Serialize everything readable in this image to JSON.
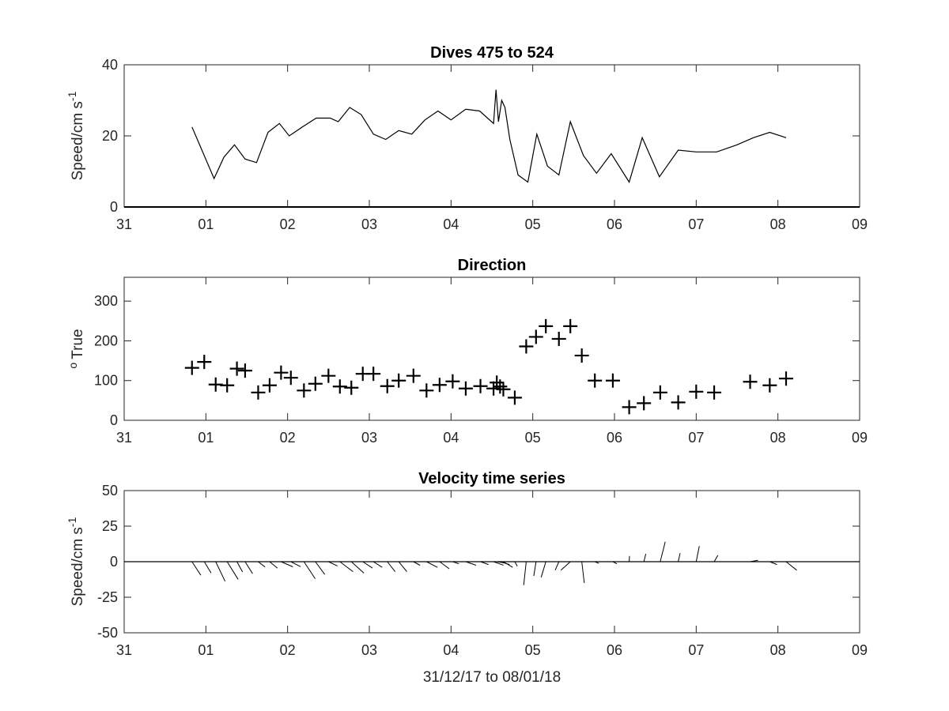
{
  "chart_data": [
    {
      "type": "line",
      "title": "Dives 475 to 524",
      "xlabel": "",
      "ylabel": "Speed/cm s",
      "ylabel_superscript": "-1",
      "xlim": [
        0,
        9
      ],
      "ylim": [
        0,
        40
      ],
      "xtick_values": [
        0,
        1,
        2,
        3,
        4,
        5,
        6,
        7,
        8,
        9
      ],
      "xtick_labels": [
        "31",
        "01",
        "02",
        "03",
        "04",
        "05",
        "06",
        "07",
        "08",
        "09"
      ],
      "ytick_values": [
        0,
        20,
        40
      ],
      "ytick_labels": [
        "0",
        "20",
        "40"
      ],
      "grid": false,
      "x": [
        0.83,
        1.1,
        1.22,
        1.35,
        1.48,
        1.62,
        1.76,
        1.9,
        2.02,
        2.18,
        2.35,
        2.52,
        2.62,
        2.76,
        2.9,
        3.05,
        3.2,
        3.36,
        3.52,
        3.68,
        3.84,
        4.0,
        4.18,
        4.35,
        4.52,
        4.55,
        4.58,
        4.62,
        4.66,
        4.72,
        4.82,
        4.94,
        5.05,
        5.18,
        5.32,
        5.46,
        5.62,
        5.78,
        5.96,
        6.18,
        6.34,
        6.55,
        6.78,
        7.0,
        7.25,
        7.5,
        7.7,
        7.9,
        8.1
      ],
      "y": [
        22.5,
        8,
        14,
        17.5,
        13.5,
        12.5,
        21,
        23.5,
        20,
        22.5,
        25,
        25,
        24,
        28,
        26,
        20.5,
        19,
        21.5,
        20.5,
        24.5,
        27,
        24.5,
        27.5,
        27,
        23.5,
        33,
        24,
        30,
        28,
        19,
        9,
        7,
        20.5,
        11.5,
        9,
        24,
        14.5,
        9.5,
        15,
        7,
        19.5,
        8.5,
        16,
        15.5,
        15.5,
        17.5,
        19.5,
        21,
        19.5
      ]
    },
    {
      "type": "scatter",
      "title": "Direction",
      "xlabel": "",
      "ylabel": "True",
      "ylabel_superscript": "o",
      "marker": "plus",
      "xlim": [
        0,
        9
      ],
      "ylim": [
        0,
        360
      ],
      "xtick_values": [
        0,
        1,
        2,
        3,
        4,
        5,
        6,
        7,
        8,
        9
      ],
      "xtick_labels": [
        "31",
        "01",
        "02",
        "03",
        "04",
        "05",
        "06",
        "07",
        "08",
        "09"
      ],
      "ytick_values": [
        0,
        100,
        200,
        300
      ],
      "ytick_labels": [
        "0",
        "100",
        "200",
        "300"
      ],
      "grid": false,
      "x": [
        0.83,
        0.98,
        1.12,
        1.26,
        1.38,
        1.48,
        1.64,
        1.78,
        1.92,
        2.04,
        2.2,
        2.34,
        2.5,
        2.64,
        2.78,
        2.92,
        3.05,
        3.22,
        3.36,
        3.54,
        3.7,
        3.86,
        4.02,
        4.18,
        4.36,
        4.52,
        4.56,
        4.6,
        4.64,
        4.78,
        4.92,
        5.04,
        5.16,
        5.32,
        5.46,
        5.6,
        5.76,
        5.98,
        6.18,
        6.36,
        6.56,
        6.78,
        7.0,
        7.22,
        7.66,
        7.9,
        8.1
      ],
      "y": [
        132,
        147,
        90,
        88,
        130,
        125,
        70,
        88,
        120,
        107,
        75,
        92,
        112,
        85,
        82,
        117,
        117,
        86,
        100,
        112,
        75,
        89,
        98,
        80,
        86,
        80,
        95,
        85,
        78,
        57,
        186,
        210,
        237,
        205,
        237,
        163,
        100,
        100,
        33,
        43,
        70,
        45,
        72,
        70,
        97,
        88,
        105
      ]
    },
    {
      "type": "line",
      "subtype": "quiver",
      "title": "Velocity time series",
      "xlabel": "31/12/17 to 08/01/18",
      "ylabel": "Speed/cm s",
      "ylabel_superscript": "-1",
      "xlim": [
        0,
        9
      ],
      "ylim": [
        -50,
        50
      ],
      "xtick_values": [
        0,
        1,
        2,
        3,
        4,
        5,
        6,
        7,
        8,
        9
      ],
      "xtick_labels": [
        "31",
        "01",
        "02",
        "03",
        "04",
        "05",
        "06",
        "07",
        "08",
        "09"
      ],
      "ytick_values": [
        -50,
        -25,
        0,
        25,
        50
      ],
      "ytick_labels": [
        "-50",
        "-25",
        "0",
        "25",
        "50"
      ],
      "grid": false,
      "vectors": [
        [
          0.83,
          2.8,
          -9.5
        ],
        [
          0.98,
          2.2,
          -8.0
        ],
        [
          1.12,
          3.0,
          -13.8
        ],
        [
          1.26,
          3.5,
          -12.4
        ],
        [
          1.38,
          1.8,
          -7.2
        ],
        [
          1.48,
          2.4,
          -8.4
        ],
        [
          1.64,
          2.2,
          -3.7
        ],
        [
          1.78,
          2.5,
          -4.5
        ],
        [
          1.92,
          3.8,
          -3.6
        ],
        [
          2.04,
          3.1,
          -3.5
        ],
        [
          2.2,
          3.6,
          -12.0
        ],
        [
          2.34,
          3.0,
          -9.0
        ],
        [
          2.5,
          2.9,
          -3.0
        ],
        [
          2.64,
          4.2,
          -7.0
        ],
        [
          2.78,
          4.0,
          -8.0
        ],
        [
          2.92,
          3.1,
          -4.5
        ],
        [
          3.05,
          2.8,
          -4.0
        ],
        [
          3.22,
          2.5,
          -7.0
        ],
        [
          3.36,
          2.6,
          -7.0
        ],
        [
          3.54,
          2.1,
          -2.5
        ],
        [
          3.7,
          3.5,
          -4.0
        ],
        [
          3.86,
          3.1,
          -5.0
        ],
        [
          4.02,
          2.0,
          -1.5
        ],
        [
          4.18,
          3.3,
          -2.5
        ],
        [
          4.36,
          2.6,
          -2.0
        ],
        [
          4.52,
          3.2,
          -2.5
        ],
        [
          4.56,
          2.8,
          -1.0
        ],
        [
          4.6,
          3.0,
          -2.0
        ],
        [
          4.64,
          3.0,
          -4.0
        ],
        [
          4.78,
          0.8,
          -3.2
        ],
        [
          4.92,
          -0.8,
          -16.5
        ],
        [
          5.04,
          -0.7,
          -10.0
        ],
        [
          5.16,
          -1.5,
          -11.0
        ],
        [
          5.32,
          -1.2,
          -6.0
        ],
        [
          5.46,
          -3.0,
          -6.0
        ],
        [
          5.6,
          0.8,
          -15.0
        ],
        [
          5.76,
          1.3,
          -1.2
        ],
        [
          5.98,
          1.3,
          -1.5
        ],
        [
          6.18,
          0.1,
          4.0
        ],
        [
          6.36,
          0.6,
          5.5
        ],
        [
          6.56,
          1.6,
          14.0
        ],
        [
          6.78,
          0.6,
          6.0
        ],
        [
          7.0,
          1.0,
          11.0
        ],
        [
          7.22,
          1.2,
          4.5
        ],
        [
          7.66,
          2.5,
          1.0
        ],
        [
          7.9,
          2.3,
          -2.0
        ],
        [
          8.1,
          3.4,
          -6.0
        ]
      ]
    }
  ]
}
